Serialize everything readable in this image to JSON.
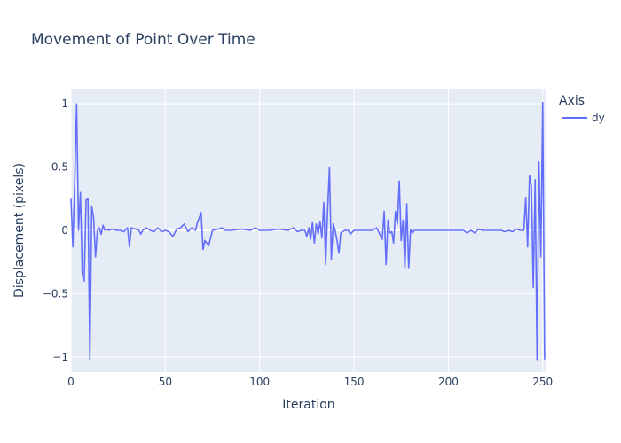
{
  "chart_data": {
    "type": "line",
    "title": "Movement of Point Over Time",
    "xlabel": "Iteration",
    "ylabel": "Displacement (pixels)",
    "xlim": [
      0,
      252
    ],
    "ylim": [
      -1.12,
      1.12
    ],
    "x_ticks": [
      0,
      50,
      100,
      150,
      200,
      250
    ],
    "y_ticks": [
      -1,
      -0.5,
      0,
      0.5,
      1
    ],
    "y_tick_labels": [
      "−1",
      "−0.5",
      "0",
      "0.5",
      "1"
    ],
    "grid": true,
    "legend": {
      "title": "Axis",
      "position": "right-top"
    },
    "series": [
      {
        "name": "dy",
        "color": "#636efa",
        "points": [
          [
            0,
            0.25
          ],
          [
            1,
            -0.13
          ],
          [
            2,
            0.4
          ],
          [
            3,
            1.0
          ],
          [
            4,
            0.0
          ],
          [
            5,
            0.3
          ],
          [
            6,
            -0.35
          ],
          [
            7,
            -0.4
          ],
          [
            8,
            0.24
          ],
          [
            9,
            0.25
          ],
          [
            10,
            -1.02
          ],
          [
            11,
            0.19
          ],
          [
            12,
            0.1
          ],
          [
            13,
            -0.21
          ],
          [
            14,
            0.0
          ],
          [
            15,
            0.02
          ],
          [
            16,
            -0.03
          ],
          [
            17,
            0.04
          ],
          [
            18,
            0.0
          ],
          [
            19,
            0.01
          ],
          [
            20,
            0.0
          ],
          [
            22,
            0.01
          ],
          [
            24,
            0.0
          ],
          [
            26,
            0.0
          ],
          [
            28,
            -0.01
          ],
          [
            30,
            0.02
          ],
          [
            31,
            -0.13
          ],
          [
            32,
            0.02
          ],
          [
            34,
            0.01
          ],
          [
            36,
            0.0
          ],
          [
            37,
            -0.03
          ],
          [
            38,
            0.0
          ],
          [
            40,
            0.02
          ],
          [
            42,
            0.0
          ],
          [
            44,
            -0.01
          ],
          [
            46,
            0.02
          ],
          [
            48,
            -0.01
          ],
          [
            50,
            0.0
          ],
          [
            52,
            -0.01
          ],
          [
            54,
            -0.05
          ],
          [
            56,
            0.01
          ],
          [
            58,
            0.02
          ],
          [
            60,
            0.05
          ],
          [
            62,
            -0.01
          ],
          [
            64,
            0.02
          ],
          [
            66,
            0.0
          ],
          [
            67,
            0.06
          ],
          [
            69,
            0.14
          ],
          [
            70,
            -0.15
          ],
          [
            71,
            -0.08
          ],
          [
            72,
            -0.1
          ],
          [
            73,
            -0.12
          ],
          [
            75,
            0.0
          ],
          [
            78,
            0.01
          ],
          [
            80,
            0.02
          ],
          [
            82,
            0.0
          ],
          [
            85,
            0.0
          ],
          [
            90,
            0.01
          ],
          [
            95,
            0.0
          ],
          [
            98,
            0.02
          ],
          [
            100,
            0.0
          ],
          [
            105,
            0.0
          ],
          [
            110,
            0.01
          ],
          [
            115,
            0.0
          ],
          [
            118,
            0.02
          ],
          [
            120,
            -0.01
          ],
          [
            122,
            0.0
          ],
          [
            124,
            0.0
          ],
          [
            125,
            -0.05
          ],
          [
            126,
            0.02
          ],
          [
            127,
            -0.07
          ],
          [
            128,
            0.06
          ],
          [
            129,
            -0.1
          ],
          [
            130,
            0.05
          ],
          [
            131,
            -0.03
          ],
          [
            132,
            0.07
          ],
          [
            133,
            -0.06
          ],
          [
            134,
            0.22
          ],
          [
            135,
            -0.27
          ],
          [
            136,
            0.15
          ],
          [
            137,
            0.5
          ],
          [
            138,
            -0.23
          ],
          [
            139,
            0.05
          ],
          [
            140,
            0.0
          ],
          [
            141,
            -0.08
          ],
          [
            142,
            -0.18
          ],
          [
            143,
            -0.02
          ],
          [
            145,
            0.0
          ],
          [
            147,
            0.0
          ],
          [
            148,
            -0.03
          ],
          [
            150,
            0.0
          ],
          [
            155,
            0.0
          ],
          [
            160,
            0.0
          ],
          [
            162,
            0.02
          ],
          [
            164,
            -0.04
          ],
          [
            165,
            -0.07
          ],
          [
            166,
            0.15
          ],
          [
            167,
            -0.27
          ],
          [
            168,
            0.08
          ],
          [
            169,
            -0.02
          ],
          [
            170,
            -0.01
          ],
          [
            171,
            -0.1
          ],
          [
            172,
            0.15
          ],
          [
            173,
            0.05
          ],
          [
            174,
            0.39
          ],
          [
            175,
            -0.08
          ],
          [
            176,
            0.08
          ],
          [
            177,
            -0.3
          ],
          [
            178,
            0.21
          ],
          [
            179,
            -0.3
          ],
          [
            180,
            0.01
          ],
          [
            181,
            -0.02
          ],
          [
            182,
            0.0
          ],
          [
            185,
            0.0
          ],
          [
            190,
            0.0
          ],
          [
            195,
            0.0
          ],
          [
            200,
            0.0
          ],
          [
            205,
            0.0
          ],
          [
            208,
            0.0
          ],
          [
            210,
            -0.02
          ],
          [
            212,
            0.0
          ],
          [
            214,
            -0.02
          ],
          [
            216,
            0.01
          ],
          [
            218,
            0.0
          ],
          [
            220,
            0.0
          ],
          [
            225,
            0.0
          ],
          [
            228,
            0.0
          ],
          [
            230,
            -0.01
          ],
          [
            232,
            0.0
          ],
          [
            234,
            -0.01
          ],
          [
            236,
            0.01
          ],
          [
            238,
            0.0
          ],
          [
            240,
            0.0
          ],
          [
            241,
            0.26
          ],
          [
            242,
            -0.13
          ],
          [
            243,
            0.43
          ],
          [
            244,
            0.35
          ],
          [
            245,
            -0.45
          ],
          [
            246,
            0.4
          ],
          [
            247,
            -1.02
          ],
          [
            248,
            0.54
          ],
          [
            249,
            -0.21
          ],
          [
            250,
            1.01
          ],
          [
            251,
            -1.02
          ]
        ]
      }
    ]
  }
}
